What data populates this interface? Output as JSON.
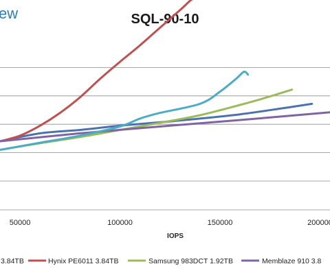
{
  "brand": {
    "text": "ew"
  },
  "chart_data": {
    "type": "line",
    "title": "SQL-90-10",
    "xlabel": "IOPS",
    "ylabel": "",
    "xlim": [
      40000,
      205000
    ],
    "ylim": [
      0,
      10
    ],
    "x_ticks": [
      {
        "value": 50000,
        "label": "50000"
      },
      {
        "value": 100000,
        "label": "100000"
      },
      {
        "value": 150000,
        "label": "150000"
      },
      {
        "value": 200000,
        "label": "200000"
      }
    ],
    "y_gridlines": [
      2,
      3,
      4,
      5,
      6,
      7
    ],
    "grid": true,
    "legend_position": "bottom",
    "series": [
      {
        "name": "3.84TB",
        "color": "#4a72b0",
        "x": [
          40000,
          60000,
          80000,
          100000,
          120000,
          140000,
          160000,
          180000,
          196000
        ],
        "y": [
          4.4,
          4.68,
          4.8,
          4.95,
          5.07,
          5.2,
          5.35,
          5.55,
          5.72
        ]
      },
      {
        "name": "Hynix PE6011 3.84TB",
        "color": "#c0504d",
        "x": [
          40000,
          50000,
          60000,
          70000,
          80000,
          90000,
          100000,
          110000,
          120000,
          130000,
          135000,
          137000,
          135000
        ],
        "y": [
          4.4,
          4.6,
          4.95,
          5.4,
          5.95,
          6.6,
          7.2,
          7.78,
          8.4,
          9.02,
          9.35,
          9.45,
          9.5
        ]
      },
      {
        "name": "Samsung 983DCT 1.92TB",
        "color": "#9bbb59",
        "x": [
          40000,
          60000,
          80000,
          100000,
          120000,
          140000,
          160000,
          175000,
          186000
        ],
        "y": [
          4.1,
          4.33,
          4.55,
          4.8,
          5.05,
          5.32,
          5.68,
          5.98,
          6.22
        ]
      },
      {
        "name": "Memblaze 910",
        "color": "#8064a2",
        "x": [
          40000,
          80000,
          120000,
          160000,
          205000
        ],
        "y": [
          4.4,
          4.68,
          4.92,
          5.15,
          5.42
        ]
      },
      {
        "name": "",
        "color": "#4bacc6",
        "x": [
          40000,
          60000,
          80000,
          100000,
          110000,
          120000,
          140000,
          150000,
          158000,
          162000,
          164000
        ],
        "y": [
          4.1,
          4.35,
          4.6,
          4.92,
          5.2,
          5.4,
          5.72,
          6.15,
          6.6,
          6.85,
          6.75
        ]
      }
    ],
    "legend": [
      {
        "label": "3.84TB",
        "color": "#4a72b0"
      },
      {
        "label": "Hynix PE6011 3.84TB",
        "color": "#c0504d"
      },
      {
        "label": "Samsung 983DCT 1.92TB",
        "color": "#9bbb59"
      },
      {
        "label": "Memblaze 910 3.8",
        "color": "#8064a2"
      }
    ]
  }
}
